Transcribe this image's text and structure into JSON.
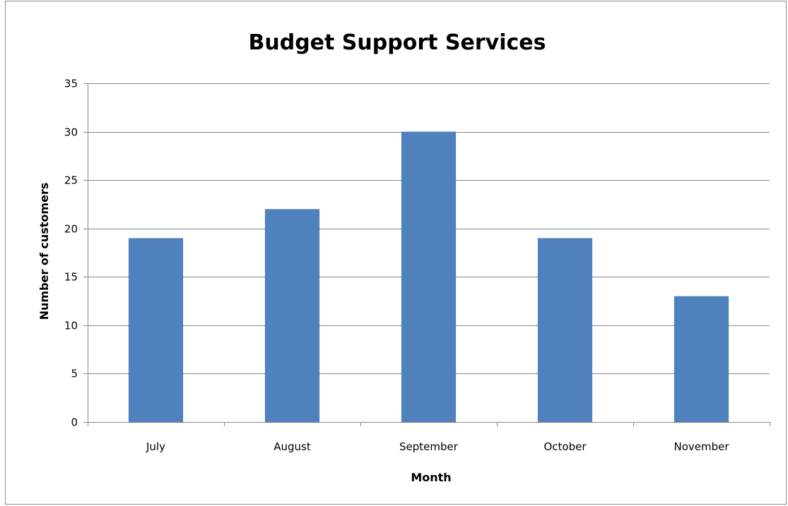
{
  "chart_data": {
    "type": "bar",
    "title": "Budget Support Services",
    "xlabel": "Month",
    "ylabel": "Number of customers",
    "categories": [
      "July",
      "August",
      "September",
      "October",
      "November"
    ],
    "values": [
      19,
      22,
      30,
      19,
      13
    ],
    "ylim": [
      0,
      35
    ],
    "yticks": [
      0,
      5,
      10,
      15,
      20,
      25,
      30,
      35
    ],
    "grid": true,
    "legend": "none",
    "bar_color": "#4f81bd"
  }
}
